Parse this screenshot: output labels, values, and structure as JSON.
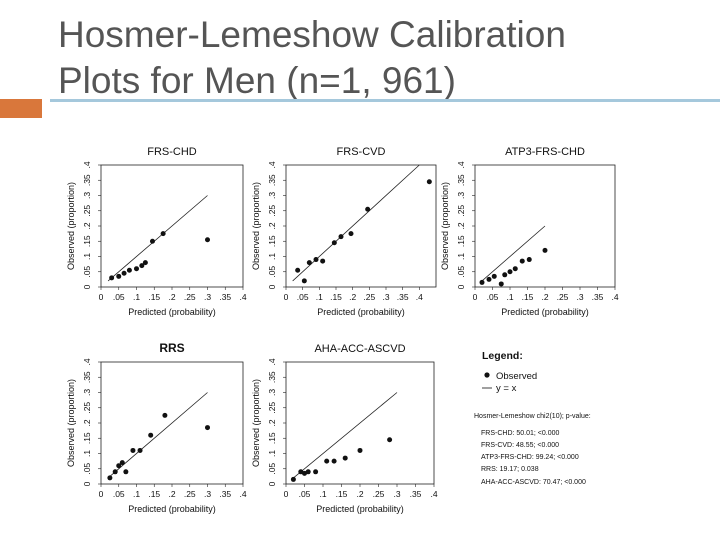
{
  "slide": {
    "title_line1": "Hosmer-Lemeshow Calibration",
    "title_line2": "Plots for Men (n=1, 961)",
    "accent_color": "#d9773b",
    "rule_color": "#a5c8dc"
  },
  "chart_data": [
    {
      "type": "scatter",
      "title": "FRS-CHD",
      "xlabel": "Predicted (probability)",
      "ylabel": "Observed (proportion)",
      "xlim": [
        0,
        0.4
      ],
      "ylim": [
        0,
        0.4
      ],
      "x_ticks": [
        "0",
        ".05",
        ".1",
        ".15",
        ".2",
        ".25",
        ".3",
        ".35",
        ".4"
      ],
      "y_ticks": [
        "0",
        ".05",
        ".1",
        ".15",
        ".2",
        ".25",
        ".3",
        ".35",
        ".4"
      ],
      "reference_line": "y = x",
      "x_max_line": 0.3,
      "points": [
        [
          0.03,
          0.03
        ],
        [
          0.05,
          0.035
        ],
        [
          0.065,
          0.045
        ],
        [
          0.08,
          0.055
        ],
        [
          0.1,
          0.06
        ],
        [
          0.115,
          0.07
        ],
        [
          0.125,
          0.08
        ],
        [
          0.145,
          0.15
        ],
        [
          0.175,
          0.175
        ],
        [
          0.3,
          0.155
        ]
      ]
    },
    {
      "type": "scatter",
      "title": "FRS-CVD",
      "xlabel": "Predicted (probability)",
      "ylabel": "Observed (proportion)",
      "xlim": [
        0,
        0.45
      ],
      "ylim": [
        0,
        0.4
      ],
      "x_ticks": [
        "0",
        ".05",
        ".1",
        ".15",
        ".2",
        ".25",
        ".3",
        ".35",
        ".4"
      ],
      "y_ticks": [
        "0",
        ".05",
        ".1",
        ".15",
        ".2",
        ".25",
        ".3",
        ".35",
        ".4"
      ],
      "reference_line": "y = x",
      "x_max_line": 0.4,
      "points": [
        [
          0.035,
          0.055
        ],
        [
          0.055,
          0.02
        ],
        [
          0.07,
          0.08
        ],
        [
          0.09,
          0.09
        ],
        [
          0.11,
          0.085
        ],
        [
          0.145,
          0.145
        ],
        [
          0.165,
          0.165
        ],
        [
          0.195,
          0.175
        ],
        [
          0.245,
          0.255
        ],
        [
          0.43,
          0.345
        ]
      ]
    },
    {
      "type": "scatter",
      "title": "ATP3-FRS-CHD",
      "xlabel": "Predicted (probability)",
      "ylabel": "Observed (proportion)",
      "xlim": [
        0,
        0.4
      ],
      "ylim": [
        0,
        0.4
      ],
      "x_ticks": [
        "0",
        ".05",
        ".1",
        ".15",
        ".2",
        ".25",
        ".3",
        ".35",
        ".4"
      ],
      "y_ticks": [
        "0",
        ".05",
        ".1",
        ".15",
        ".2",
        ".25",
        ".3",
        ".35",
        ".4"
      ],
      "reference_line": "y = x",
      "x_max_line": 0.2,
      "points": [
        [
          0.02,
          0.015
        ],
        [
          0.04,
          0.025
        ],
        [
          0.055,
          0.035
        ],
        [
          0.075,
          0.01
        ],
        [
          0.085,
          0.04
        ],
        [
          0.1,
          0.05
        ],
        [
          0.115,
          0.06
        ],
        [
          0.135,
          0.085
        ],
        [
          0.155,
          0.09
        ],
        [
          0.2,
          0.12
        ]
      ]
    },
    {
      "type": "scatter",
      "title": "RRS",
      "xlabel": "Predicted (probability)",
      "ylabel": "Observed (proportion)",
      "xlim": [
        0,
        0.4
      ],
      "ylim": [
        0,
        0.4
      ],
      "x_ticks": [
        "0",
        ".05",
        ".1",
        ".15",
        ".2",
        ".25",
        ".3",
        ".35",
        ".4"
      ],
      "y_ticks": [
        "0",
        ".05",
        ".1",
        ".15",
        ".2",
        ".25",
        ".3",
        ".35",
        ".4"
      ],
      "reference_line": "y = x",
      "x_max_line": 0.3,
      "points": [
        [
          0.025,
          0.02
        ],
        [
          0.04,
          0.04
        ],
        [
          0.05,
          0.06
        ],
        [
          0.06,
          0.07
        ],
        [
          0.07,
          0.04
        ],
        [
          0.09,
          0.11
        ],
        [
          0.11,
          0.11
        ],
        [
          0.14,
          0.16
        ],
        [
          0.18,
          0.225
        ],
        [
          0.3,
          0.185
        ]
      ]
    },
    {
      "type": "scatter",
      "title": "AHA-ACC-ASCVD",
      "xlabel": "Predicted (probability)",
      "ylabel": "Observed (proportion)",
      "xlim": [
        0,
        0.4
      ],
      "ylim": [
        0,
        0.4
      ],
      "x_ticks": [
        "0",
        ".05",
        ".1",
        ".15",
        ".2",
        ".25",
        ".3",
        ".35",
        ".4"
      ],
      "y_ticks": [
        "0",
        ".05",
        ".1",
        ".15",
        ".2",
        ".25",
        ".3",
        ".35",
        ".4"
      ],
      "reference_line": "y = x",
      "x_max_line": 0.3,
      "points": [
        [
          0.02,
          0.015
        ],
        [
          0.04,
          0.04
        ],
        [
          0.05,
          0.035
        ],
        [
          0.06,
          0.04
        ],
        [
          0.08,
          0.04
        ],
        [
          0.11,
          0.075
        ],
        [
          0.13,
          0.075
        ],
        [
          0.16,
          0.085
        ],
        [
          0.2,
          0.11
        ],
        [
          0.28,
          0.145
        ]
      ]
    }
  ],
  "legend": {
    "title": "Legend:",
    "items": [
      {
        "symbol": "dot",
        "label": "Observed"
      },
      {
        "symbol": "line",
        "label": "y = x"
      }
    ],
    "stats_title": "Hosmer-Lemeshow chi2(10); p-value:",
    "stats": [
      "FRS-CHD: 50.01; <0.000",
      "FRS-CVD: 48.55; <0.000",
      "ATP3-FRS-CHD: 99.24; <0.000",
      "RRS: 19.17; 0.038",
      "AHA-ACC-ASCVD: 70.47; <0.000"
    ]
  }
}
